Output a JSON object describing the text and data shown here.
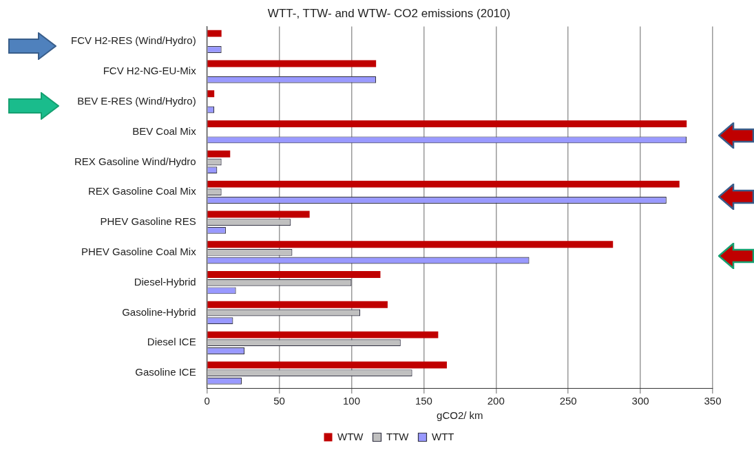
{
  "chart_data": {
    "type": "bar",
    "orientation": "horizontal",
    "title": "WTT-, TTW- and WTW- CO2 emissions (2010)",
    "xlabel": "gCO2/ km",
    "categories": [
      "FCV H2-RES (Wind/Hydro)",
      "FCV H2-NG-EU-Mix",
      "BEV E-RES (Wind/Hydro)",
      "BEV Coal Mix",
      "REX Gasoline Wind/Hydro",
      "REX Gasoline Coal Mix",
      "PHEV Gasoline RES",
      "PHEV Gasoline Coal Mix",
      "Diesel-Hybrid",
      "Gasoline-Hybrid",
      "Diesel ICE",
      "Gasoline ICE"
    ],
    "series": [
      {
        "name": "WTW",
        "color": "#c00000",
        "values": [
          10,
          117,
          5,
          332,
          16,
          327,
          71,
          281,
          120,
          125,
          160,
          166
        ]
      },
      {
        "name": "TTW",
        "color": "#c0c0c0",
        "values": [
          null,
          null,
          null,
          null,
          10,
          10,
          58,
          59,
          100,
          106,
          134,
          142
        ]
      },
      {
        "name": "WTT",
        "color": "#9999ff",
        "values": [
          10,
          117,
          5,
          332,
          7,
          318,
          13,
          223,
          20,
          18,
          26,
          24
        ]
      }
    ],
    "xlim": [
      0,
      350
    ],
    "xticks": [
      0,
      50,
      100,
      150,
      200,
      250,
      300,
      350
    ],
    "grid": "x",
    "legend": "bottom"
  }
}
